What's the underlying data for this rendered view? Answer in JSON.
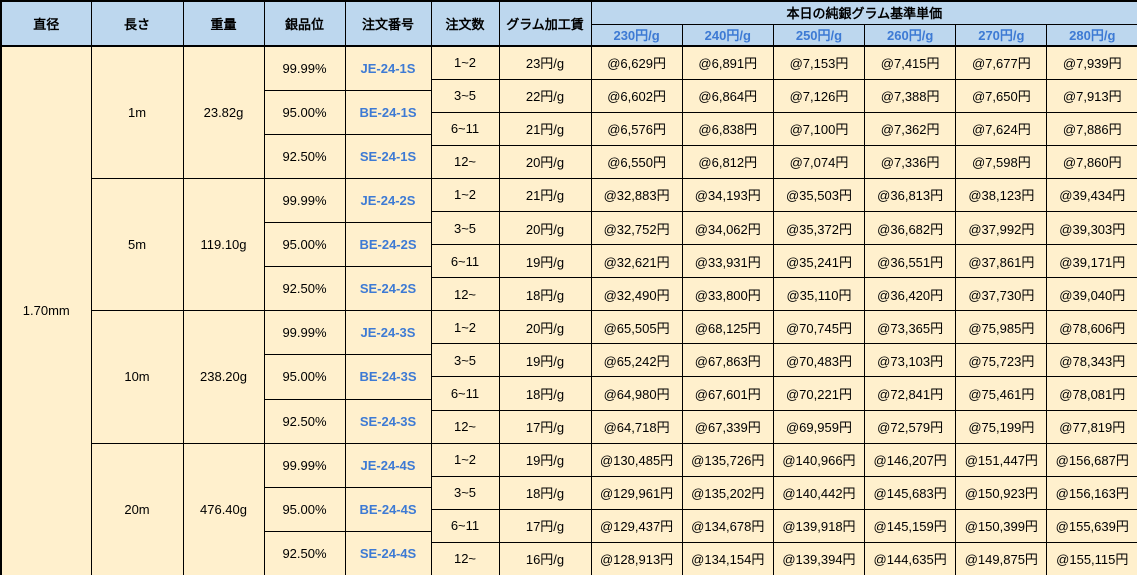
{
  "table": {
    "headers": {
      "diameter": "直径",
      "length": "長さ",
      "weight": "重量",
      "purity": "銀品位",
      "order_no": "注文番号",
      "order_qty": "注文数",
      "gram_fee": "グラム加工賃",
      "price_group": "本日の純銀グラム基準単価",
      "rates": [
        "230円/g",
        "240円/g",
        "250円/g",
        "260円/g",
        "270円/g",
        "280円/g"
      ]
    },
    "diameter": "1.70mm",
    "colors": {
      "header_bg": "#BDD7EE",
      "body_bg": "#FFF0CD",
      "accent_blue": "#3D7AD4",
      "border": "#000000"
    },
    "groups": [
      {
        "length": "1m",
        "weight": "23.82g",
        "purities": [
          {
            "purity": "99.99%",
            "order_no": "JE-24-1S"
          },
          {
            "purity": "95.00%",
            "order_no": "BE-24-1S"
          },
          {
            "purity": "92.50%",
            "order_no": "SE-24-1S"
          }
        ],
        "qty_rows": [
          {
            "qty": "1~2",
            "fee": "23円/g",
            "prices": [
              "@6,629円",
              "@6,891円",
              "@7,153円",
              "@7,415円",
              "@7,677円",
              "@7,939円"
            ]
          },
          {
            "qty": "3~5",
            "fee": "22円/g",
            "prices": [
              "@6,602円",
              "@6,864円",
              "@7,126円",
              "@7,388円",
              "@7,650円",
              "@7,913円"
            ]
          },
          {
            "qty": "6~11",
            "fee": "21円/g",
            "prices": [
              "@6,576円",
              "@6,838円",
              "@7,100円",
              "@7,362円",
              "@7,624円",
              "@7,886円"
            ]
          },
          {
            "qty": "12~",
            "fee": "20円/g",
            "prices": [
              "@6,550円",
              "@6,812円",
              "@7,074円",
              "@7,336円",
              "@7,598円",
              "@7,860円"
            ]
          }
        ]
      },
      {
        "length": "5m",
        "weight": "119.10g",
        "purities": [
          {
            "purity": "99.99%",
            "order_no": "JE-24-2S"
          },
          {
            "purity": "95.00%",
            "order_no": "BE-24-2S"
          },
          {
            "purity": "92.50%",
            "order_no": "SE-24-2S"
          }
        ],
        "qty_rows": [
          {
            "qty": "1~2",
            "fee": "21円/g",
            "prices": [
              "@32,883円",
              "@34,193円",
              "@35,503円",
              "@36,813円",
              "@38,123円",
              "@39,434円"
            ]
          },
          {
            "qty": "3~5",
            "fee": "20円/g",
            "prices": [
              "@32,752円",
              "@34,062円",
              "@35,372円",
              "@36,682円",
              "@37,992円",
              "@39,303円"
            ]
          },
          {
            "qty": "6~11",
            "fee": "19円/g",
            "prices": [
              "@32,621円",
              "@33,931円",
              "@35,241円",
              "@36,551円",
              "@37,861円",
              "@39,171円"
            ]
          },
          {
            "qty": "12~",
            "fee": "18円/g",
            "prices": [
              "@32,490円",
              "@33,800円",
              "@35,110円",
              "@36,420円",
              "@37,730円",
              "@39,040円"
            ]
          }
        ]
      },
      {
        "length": "10m",
        "weight": "238.20g",
        "purities": [
          {
            "purity": "99.99%",
            "order_no": "JE-24-3S"
          },
          {
            "purity": "95.00%",
            "order_no": "BE-24-3S"
          },
          {
            "purity": "92.50%",
            "order_no": "SE-24-3S"
          }
        ],
        "qty_rows": [
          {
            "qty": "1~2",
            "fee": "20円/g",
            "prices": [
              "@65,505円",
              "@68,125円",
              "@70,745円",
              "@73,365円",
              "@75,985円",
              "@78,606円"
            ]
          },
          {
            "qty": "3~5",
            "fee": "19円/g",
            "prices": [
              "@65,242円",
              "@67,863円",
              "@70,483円",
              "@73,103円",
              "@75,723円",
              "@78,343円"
            ]
          },
          {
            "qty": "6~11",
            "fee": "18円/g",
            "prices": [
              "@64,980円",
              "@67,601円",
              "@70,221円",
              "@72,841円",
              "@75,461円",
              "@78,081円"
            ]
          },
          {
            "qty": "12~",
            "fee": "17円/g",
            "prices": [
              "@64,718円",
              "@67,339円",
              "@69,959円",
              "@72,579円",
              "@75,199円",
              "@77,819円"
            ]
          }
        ]
      },
      {
        "length": "20m",
        "weight": "476.40g",
        "purities": [
          {
            "purity": "99.99%",
            "order_no": "JE-24-4S"
          },
          {
            "purity": "95.00%",
            "order_no": "BE-24-4S"
          },
          {
            "purity": "92.50%",
            "order_no": "SE-24-4S"
          }
        ],
        "qty_rows": [
          {
            "qty": "1~2",
            "fee": "19円/g",
            "prices": [
              "@130,485円",
              "@135,726円",
              "@140,966円",
              "@146,207円",
              "@151,447円",
              "@156,687円"
            ]
          },
          {
            "qty": "3~5",
            "fee": "18円/g",
            "prices": [
              "@129,961円",
              "@135,202円",
              "@140,442円",
              "@145,683円",
              "@150,923円",
              "@156,163円"
            ]
          },
          {
            "qty": "6~11",
            "fee": "17円/g",
            "prices": [
              "@129,437円",
              "@134,678円",
              "@139,918円",
              "@145,159円",
              "@150,399円",
              "@155,639円"
            ]
          },
          {
            "qty": "12~",
            "fee": "16円/g",
            "prices": [
              "@128,913円",
              "@134,154円",
              "@139,394円",
              "@144,635円",
              "@149,875円",
              "@155,115円"
            ]
          }
        ]
      }
    ]
  }
}
